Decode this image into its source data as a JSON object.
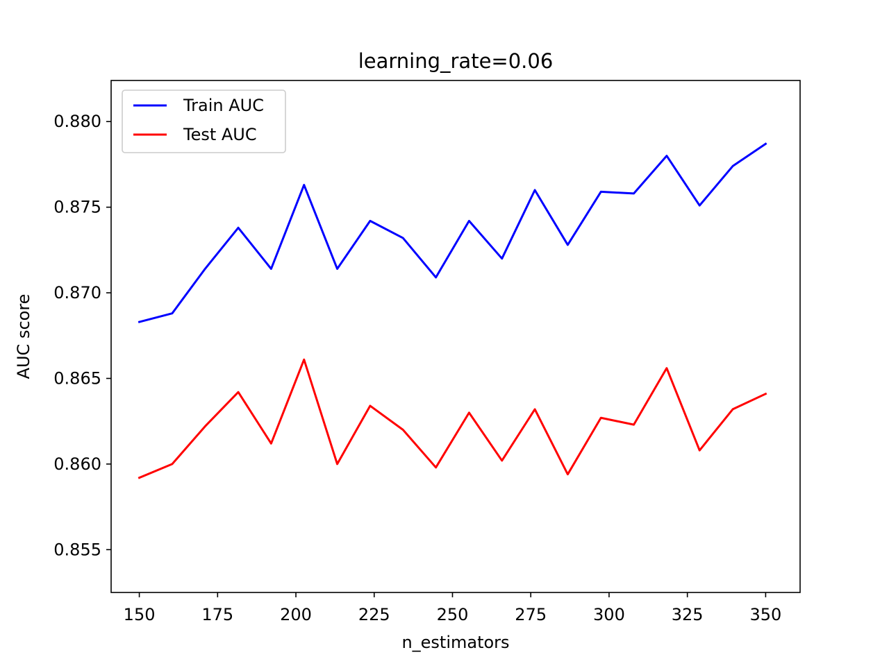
{
  "chart_data": {
    "type": "line",
    "title": "learning_rate=0.06",
    "xlabel": "n_estimators",
    "ylabel": "AUC score",
    "xlim": [
      141,
      361
    ],
    "ylim": [
      0.8525,
      0.8824
    ],
    "xticks": [
      150,
      175,
      200,
      225,
      250,
      275,
      300,
      325,
      350
    ],
    "yticks": [
      0.855,
      0.86,
      0.865,
      0.87,
      0.875,
      0.88
    ],
    "ytick_labels": [
      "0.855",
      "0.860",
      "0.865",
      "0.870",
      "0.875",
      "0.880"
    ],
    "grid": false,
    "legend_position": "upper-left",
    "x": [
      150,
      160.5,
      171,
      181.6,
      192.1,
      202.6,
      213.2,
      223.7,
      234.2,
      244.7,
      255.3,
      265.8,
      276.3,
      286.8,
      297.4,
      307.9,
      318.4,
      328.9,
      339.5,
      350
    ],
    "series": [
      {
        "name": "Train AUC",
        "color": "#0000ff",
        "values": [
          0.8683,
          0.8688,
          0.8714,
          0.8738,
          0.8714,
          0.8763,
          0.8714,
          0.8742,
          0.8732,
          0.8709,
          0.8742,
          0.872,
          0.876,
          0.8728,
          0.8759,
          0.8758,
          0.878,
          0.8751,
          0.8774,
          0.8787
        ]
      },
      {
        "name": "Test AUC",
        "color": "#ff0000",
        "values": [
          0.8592,
          0.86,
          0.8622,
          0.8642,
          0.8612,
          0.8661,
          0.86,
          0.8634,
          0.862,
          0.8598,
          0.863,
          0.8602,
          0.8632,
          0.8594,
          0.8627,
          0.8623,
          0.8656,
          0.8608,
          0.8632,
          0.8641
        ]
      }
    ]
  }
}
